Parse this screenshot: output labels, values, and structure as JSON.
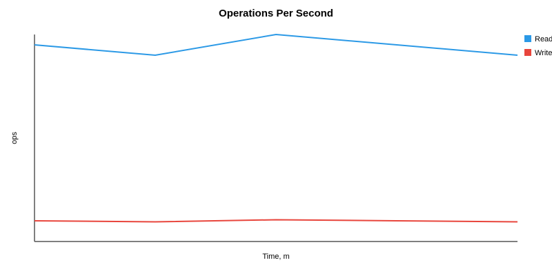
{
  "chart_data": {
    "type": "line",
    "title": "Operations Per Second",
    "xlabel": "Time, m",
    "ylabel": "ops",
    "x": [
      0,
      1,
      2,
      3,
      4
    ],
    "ylim": [
      0,
      100
    ],
    "grid": false,
    "legend": "top-right",
    "series": [
      {
        "name": "Read",
        "color": "#2b99e6",
        "values": [
          95,
          90,
          100,
          95,
          90
        ]
      },
      {
        "name": "Write",
        "color": "#e8453c",
        "values": [
          10,
          9.5,
          10.5,
          10,
          9.5
        ]
      }
    ]
  }
}
